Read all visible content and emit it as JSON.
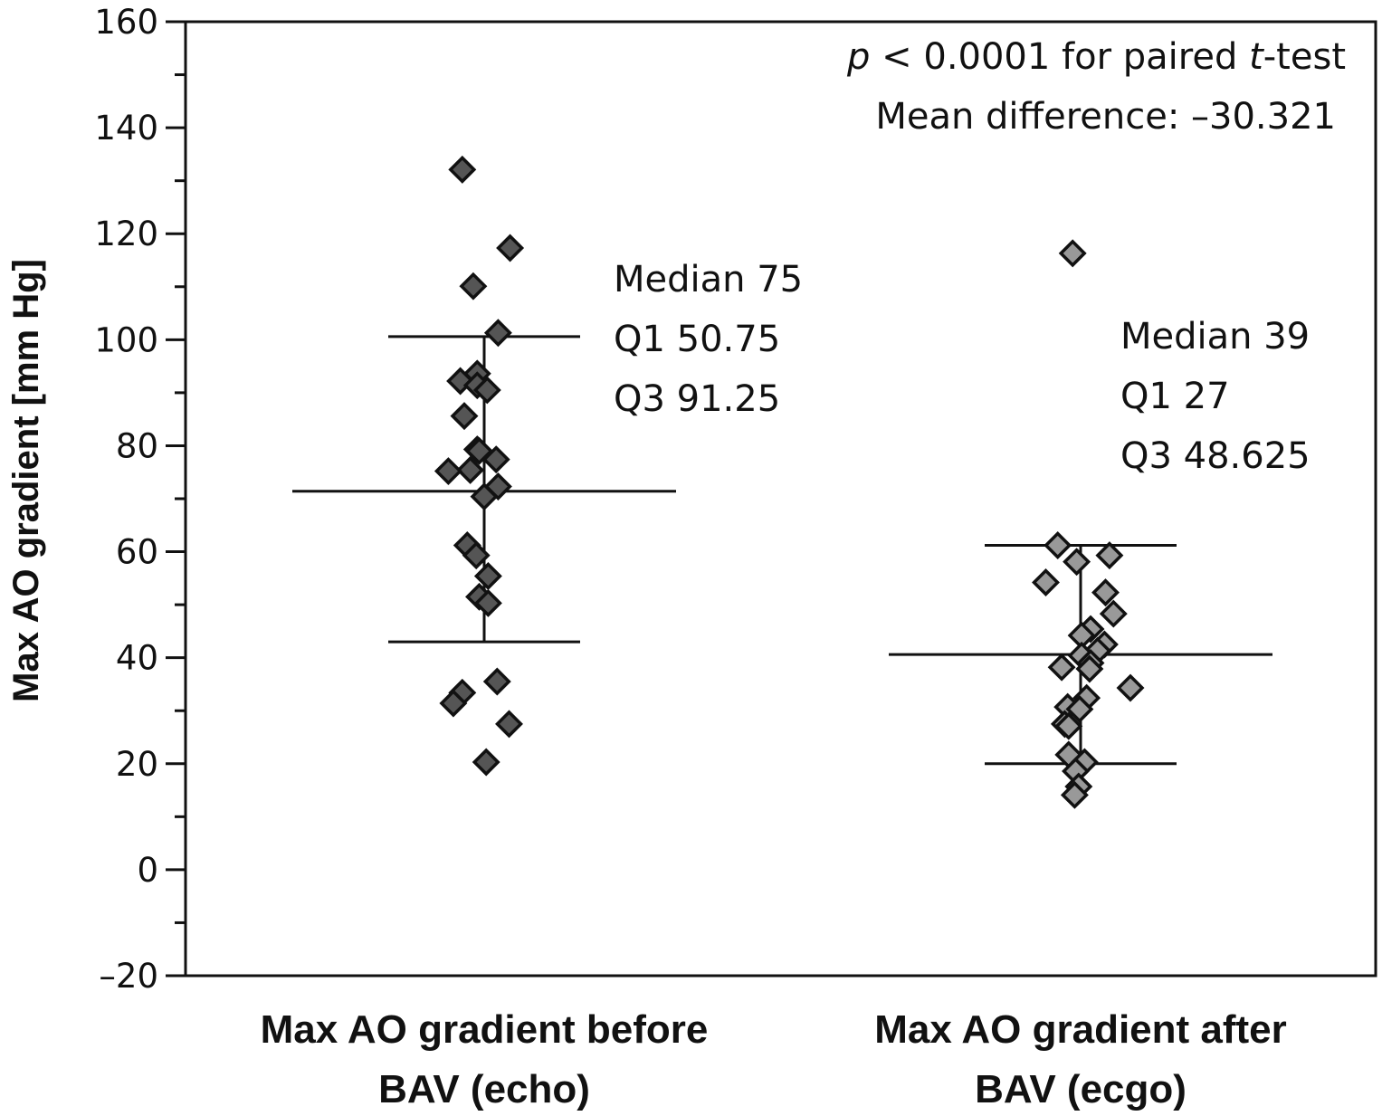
{
  "chart_data": {
    "type": "scatter",
    "subtype": "dot-plot-with-mean-and-sd",
    "title": "",
    "ylabel": "Max AO gradient [mm Hg]",
    "ylim": [
      -20,
      160
    ],
    "yticks": [
      -20,
      0,
      20,
      40,
      60,
      80,
      100,
      120,
      140,
      160
    ],
    "ytick_labels": [
      "–20",
      "0",
      "20",
      "40",
      "60",
      "80",
      "100",
      "120",
      "140",
      "160"
    ],
    "yminor_step": 10,
    "grid": false,
    "frame": "box",
    "categories": [
      "Max AO gradient before BAV (echo)",
      "Max AO gradient after BAV (ecgo)"
    ],
    "category_label_lines": [
      [
        "Max AO gradient before",
        "BAV (echo)"
      ],
      [
        "Max AO gradient after",
        "BAV (ecgo)"
      ]
    ],
    "series": [
      {
        "name": "Max AO gradient before BAV (echo)",
        "marker": "diamond",
        "color": "#555555",
        "center_line": 71.4,
        "error_upper": 100.6,
        "error_lower": 43.0,
        "values": [
          132.1,
          117.3,
          110.1,
          101.3,
          93.6,
          92.2,
          91.4,
          90.5,
          85.6,
          79.3,
          79.0,
          77.4,
          75.4,
          75.2,
          72.3,
          70.4,
          61.2,
          59.3,
          55.4,
          51.5,
          50.3,
          35.5,
          33.4,
          31.4,
          27.5,
          20.3
        ],
        "jitter": [
          -0.22,
          0.26,
          -0.11,
          0.14,
          -0.07,
          -0.24,
          -0.07,
          0.03,
          -0.2,
          -0.07,
          -0.05,
          0.12,
          -0.14,
          -0.36,
          0.14,
          0.0,
          -0.17,
          -0.08,
          0.04,
          -0.05,
          0.04,
          0.13,
          -0.22,
          -0.31,
          0.25,
          0.02
        ],
        "annotation": [
          "Median 75",
          "Q1 50.75",
          "Q3 91.25"
        ]
      },
      {
        "name": "Max AO gradient after BAV (ecgo)",
        "marker": "diamond",
        "color": "#999999",
        "center_line": 40.6,
        "error_upper": 61.2,
        "error_lower": 20.0,
        "values": [
          116.3,
          61.2,
          59.3,
          58.1,
          54.2,
          52.3,
          48.3,
          45.4,
          44.2,
          42.5,
          41.3,
          40.4,
          39.0,
          38.2,
          37.9,
          34.3,
          32.4,
          30.7,
          30.3,
          27.5,
          27.1,
          21.7,
          20.3,
          18.6,
          15.7,
          14.1
        ],
        "jitter": [
          -0.08,
          -0.23,
          0.29,
          -0.04,
          -0.35,
          0.25,
          0.33,
          0.1,
          0.01,
          0.24,
          0.17,
          0.01,
          0.1,
          -0.19,
          0.09,
          0.5,
          0.06,
          -0.13,
          -0.01,
          -0.16,
          -0.12,
          -0.12,
          0.04,
          -0.05,
          -0.02,
          -0.06
        ],
        "annotation": [
          "Median 39",
          "Q1 27",
          "Q3 48.625"
        ]
      }
    ],
    "annotations": {
      "test_line_prefix": "p",
      "test_line_mid": " < 0.0001 for paired ",
      "test_line_italic": "t",
      "test_line_suffix": "-test",
      "mean_difference": "Mean difference: –30.321"
    }
  }
}
